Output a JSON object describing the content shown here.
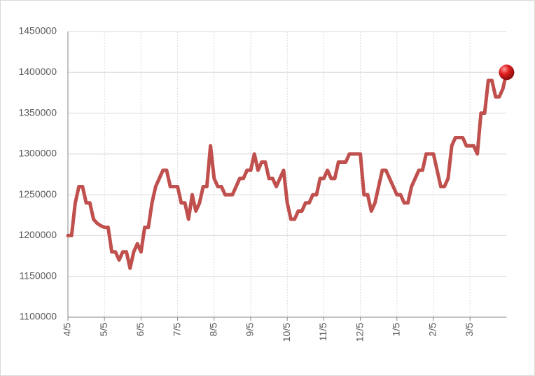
{
  "chart_data": {
    "type": "line",
    "color": "#c0504d",
    "categories": [
      "4/5",
      null,
      null,
      null,
      null,
      null,
      null,
      null,
      null,
      null,
      "5/5",
      null,
      null,
      null,
      null,
      null,
      null,
      null,
      null,
      null,
      "6/5",
      null,
      null,
      null,
      null,
      null,
      null,
      null,
      null,
      null,
      "7/5",
      null,
      null,
      null,
      null,
      null,
      null,
      null,
      null,
      null,
      "8/5",
      null,
      null,
      null,
      null,
      null,
      null,
      null,
      null,
      null,
      "9/5",
      null,
      null,
      null,
      null,
      null,
      null,
      null,
      null,
      null,
      "10/5",
      null,
      null,
      null,
      null,
      null,
      null,
      null,
      null,
      null,
      "11/5",
      null,
      null,
      null,
      null,
      null,
      null,
      null,
      null,
      null,
      "12/5",
      null,
      null,
      null,
      null,
      null,
      null,
      null,
      null,
      null,
      "1/5",
      null,
      null,
      null,
      null,
      null,
      null,
      null,
      null,
      null,
      "2/5",
      null,
      null,
      null,
      null,
      null,
      null,
      null,
      null,
      null,
      "3/5",
      null,
      null,
      null,
      null,
      null,
      null,
      null,
      null,
      null,
      null
    ],
    "values": [
      1200000,
      1200000,
      1240000,
      1260000,
      1260000,
      1240000,
      1240000,
      1220000,
      1215000,
      1212000,
      1210000,
      1210000,
      1180000,
      1180000,
      1170000,
      1180000,
      1180000,
      1160000,
      1180000,
      1190000,
      1180000,
      1210000,
      1210000,
      1240000,
      1260000,
      1270000,
      1280000,
      1280000,
      1260000,
      1260000,
      1260000,
      1240000,
      1240000,
      1220000,
      1250000,
      1230000,
      1240000,
      1260000,
      1260000,
      1310000,
      1270000,
      1260000,
      1260000,
      1250000,
      1250000,
      1250000,
      1260000,
      1270000,
      1270000,
      1280000,
      1280000,
      1300000,
      1280000,
      1290000,
      1290000,
      1270000,
      1270000,
      1260000,
      1270000,
      1280000,
      1240000,
      1220000,
      1220000,
      1230000,
      1230000,
      1240000,
      1240000,
      1250000,
      1250000,
      1270000,
      1270000,
      1280000,
      1270000,
      1270000,
      1290000,
      1290000,
      1290000,
      1300000,
      1300000,
      1300000,
      1300000,
      1250000,
      1250000,
      1230000,
      1240000,
      1260000,
      1280000,
      1280000,
      1270000,
      1260000,
      1250000,
      1250000,
      1240000,
      1240000,
      1260000,
      1270000,
      1280000,
      1280000,
      1300000,
      1300000,
      1300000,
      1280000,
      1260000,
      1260000,
      1270000,
      1310000,
      1320000,
      1320000,
      1320000,
      1310000,
      1310000,
      1310000,
      1300000,
      1350000,
      1350000,
      1390000,
      1390000,
      1370000,
      1370000,
      1380000,
      1400000
    ],
    "ylim": [
      1100000,
      1450000
    ],
    "yticks": [
      1100000,
      1150000,
      1200000,
      1250000,
      1300000,
      1350000,
      1400000,
      1450000
    ],
    "grid": true
  }
}
